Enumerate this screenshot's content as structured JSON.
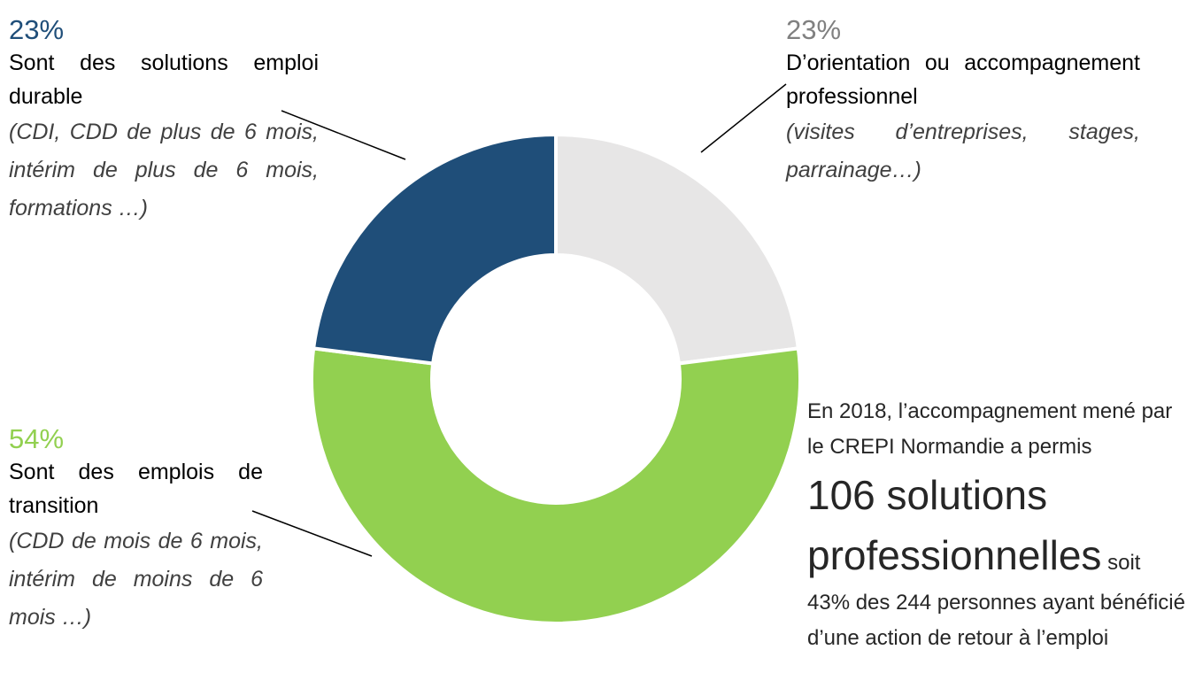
{
  "chart_data": {
    "type": "donut",
    "categories": [
      "D’orientation ou accompagnement professionnel",
      "Sont des emplois de transition",
      "Sont des solutions emploi durable"
    ],
    "values": [
      23,
      54,
      23
    ],
    "value_labels": [
      "23%",
      "54%",
      "23%"
    ],
    "colors": [
      "#e7e6e6",
      "#92d050",
      "#1f4e79"
    ],
    "label_colors": [
      "#808080",
      "#92d050",
      "#1f4e79"
    ],
    "details": [
      "(visites d’entreprises, stages, parrainage…)",
      "(CDD de mois de 6 mois, intérim de moins de 6 mois …)",
      "(CDI, CDD de plus de 6 mois, intérim de plus de 6 mois, formations …)"
    ]
  },
  "annotation": {
    "intro": "En 2018, l’accompagnement mené par le CREPI Normandie a permis",
    "highlight": "106 solutions professionnelles",
    "connector": "soit",
    "outro": "43% des 244 personnes ayant bénéficié d’une action de retour à l’emploi"
  }
}
